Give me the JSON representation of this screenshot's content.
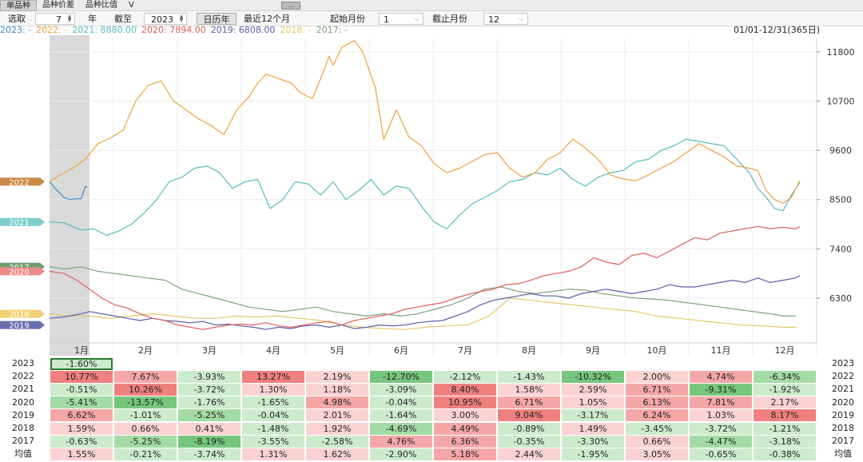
{
  "tabs": [
    {
      "label": "单品种",
      "active": true
    },
    {
      "label": "品种价差",
      "active": false
    },
    {
      "label": "品种比值",
      "active": false
    },
    {
      "label": "V",
      "active": false
    }
  ],
  "tab_button_label": "...",
  "toolbar": {
    "select_label": "选取",
    "years_value": "7",
    "years_unit": "年",
    "cutoff_label": "截至",
    "cutoff_year": "2023",
    "calendar_button": "日历年",
    "recent_button": "最近12个月",
    "start_month_label": "起始月份",
    "start_month_value": "1",
    "end_month_label": "截止月份",
    "end_month_value": "12"
  },
  "legend": [
    {
      "text": "2023: -",
      "color": "#3a8fc7"
    },
    {
      "text": "2022: -",
      "color": "#f0a03c"
    },
    {
      "text": "2021: 8880.00",
      "color": "#55bcc0"
    },
    {
      "text": "2020: 7894.00",
      "color": "#e0605a"
    },
    {
      "text": "2019: 6808.00",
      "color": "#5a5fa8"
    },
    {
      "text": "2018: -",
      "color": "#e8c66a"
    },
    {
      "text": "2017: -",
      "color": "#7aa57a"
    }
  ],
  "date_range": "01/01-12/31(365日)",
  "chart_data": {
    "type": "line",
    "months": [
      "1月",
      "2月",
      "3月",
      "4月",
      "5月",
      "6月",
      "7月",
      "8月",
      "9月",
      "10月",
      "11月",
      "12月"
    ],
    "y_ticks": [
      6300,
      7400,
      8500,
      9600,
      10700,
      11800
    ],
    "ylim": [
      5300,
      12100
    ],
    "xlim": [
      1,
      366
    ],
    "highlight_days": [
      1,
      20
    ],
    "series": [
      {
        "name": "2023",
        "color": "#3a8fc7",
        "x": [
          1,
          4,
          6,
          8,
          11,
          14,
          16,
          18,
          19
        ],
        "y": [
          8900,
          8730,
          8640,
          8540,
          8500,
          8520,
          8520,
          8790,
          8780
        ]
      },
      {
        "name": "2022",
        "color": "#f0a03c",
        "x": [
          1,
          6,
          12,
          18,
          24,
          30,
          36,
          42,
          48,
          54,
          60,
          66,
          72,
          78,
          84,
          90,
          96,
          100,
          104,
          110,
          116,
          120,
          126,
          130,
          134,
          136,
          140,
          146,
          150,
          156,
          160,
          166,
          172,
          178,
          184,
          190,
          196,
          202,
          208,
          214,
          220,
          226,
          232,
          238,
          244,
          250,
          256,
          262,
          268,
          274,
          280,
          286,
          292,
          298,
          304,
          310,
          316,
          322,
          328,
          334,
          338,
          342,
          346,
          350,
          354,
          358
        ],
        "y": [
          8900,
          9050,
          9200,
          9400,
          9750,
          9880,
          10050,
          10700,
          11050,
          11150,
          10700,
          10500,
          10300,
          10150,
          9950,
          10500,
          10800,
          11100,
          11300,
          11200,
          11100,
          10900,
          10750,
          11200,
          11700,
          11500,
          11900,
          12050,
          11800,
          11000,
          9850,
          10500,
          9900,
          9700,
          9300,
          9100,
          9200,
          9350,
          9500,
          9550,
          9200,
          9000,
          9100,
          9400,
          9550,
          9850,
          9650,
          9400,
          9050,
          8960,
          8920,
          9050,
          9200,
          9350,
          9550,
          9750,
          9600,
          9450,
          9250,
          9200,
          9150,
          8700,
          8500,
          8420,
          8550,
          8920
        ]
      },
      {
        "name": "2021",
        "color": "#55bcc0",
        "x": [
          1,
          8,
          16,
          22,
          28,
          34,
          40,
          46,
          52,
          58,
          64,
          70,
          76,
          82,
          88,
          94,
          100,
          106,
          112,
          118,
          124,
          130,
          136,
          142,
          148,
          154,
          160,
          166,
          172,
          178,
          184,
          190,
          196,
          202,
          208,
          214,
          220,
          226,
          232,
          238,
          244,
          250,
          256,
          262,
          268,
          274,
          280,
          286,
          292,
          298,
          304,
          310,
          316,
          322,
          328,
          334,
          338,
          342,
          346,
          350,
          354,
          358
        ],
        "y": [
          8000,
          7980,
          7820,
          7850,
          7700,
          7800,
          7950,
          8200,
          8500,
          8900,
          9000,
          9200,
          9250,
          9100,
          8750,
          8900,
          8950,
          8300,
          8500,
          8900,
          8850,
          8600,
          8900,
          8500,
          8700,
          8950,
          8600,
          8800,
          8750,
          8350,
          8000,
          7850,
          8150,
          8400,
          8550,
          8700,
          8900,
          8950,
          9100,
          9050,
          9200,
          8950,
          8800,
          9000,
          9100,
          9150,
          9350,
          9400,
          9600,
          9700,
          9850,
          9800,
          9750,
          9700,
          9400,
          9100,
          8750,
          8550,
          8300,
          8250,
          8600,
          8880
        ]
      },
      {
        "name": "2020",
        "color": "#e0605a",
        "x": [
          1,
          8,
          14,
          20,
          26,
          32,
          38,
          44,
          50,
          56,
          62,
          68,
          74,
          80,
          86,
          92,
          98,
          104,
          110,
          116,
          122,
          128,
          134,
          140,
          146,
          152,
          158,
          164,
          170,
          176,
          182,
          188,
          194,
          200,
          206,
          212,
          218,
          224,
          230,
          236,
          242,
          248,
          254,
          260,
          266,
          272,
          278,
          284,
          290,
          296,
          302,
          308,
          314,
          320,
          326,
          332,
          338,
          344,
          350,
          356,
          358
        ],
        "y": [
          6900,
          6850,
          6700,
          6500,
          6300,
          6150,
          6080,
          5950,
          5850,
          5800,
          5700,
          5650,
          5600,
          5650,
          5700,
          5720,
          5700,
          5750,
          5680,
          5650,
          5700,
          5750,
          5780,
          5700,
          5800,
          5850,
          5900,
          5950,
          6050,
          6100,
          6150,
          6200,
          6300,
          6380,
          6450,
          6500,
          6600,
          6620,
          6700,
          6800,
          6850,
          6900,
          7000,
          7200,
          7100,
          7050,
          7250,
          7300,
          7200,
          7350,
          7500,
          7650,
          7600,
          7750,
          7800,
          7850,
          7900,
          7850,
          7880,
          7850,
          7894
        ]
      },
      {
        "name": "2019",
        "color": "#5a5fa8",
        "x": [
          1,
          8,
          16,
          20,
          26,
          32,
          38,
          44,
          50,
          56,
          62,
          68,
          74,
          80,
          86,
          92,
          98,
          104,
          110,
          116,
          122,
          128,
          134,
          140,
          146,
          152,
          158,
          164,
          170,
          176,
          182,
          188,
          194,
          200,
          206,
          212,
          218,
          224,
          230,
          236,
          242,
          248,
          254,
          260,
          266,
          272,
          278,
          284,
          290,
          296,
          302,
          308,
          314,
          320,
          326,
          332,
          338,
          344,
          350,
          356,
          358
        ],
        "y": [
          5850,
          5880,
          5950,
          6000,
          5950,
          5900,
          5850,
          5800,
          5850,
          5800,
          5780,
          5750,
          5780,
          5700,
          5720,
          5680,
          5650,
          5600,
          5650,
          5620,
          5680,
          5700,
          5650,
          5700,
          5620,
          5650,
          5700,
          5680,
          5700,
          5750,
          5780,
          5800,
          5900,
          6000,
          6150,
          6250,
          6300,
          6350,
          6400,
          6350,
          6350,
          6300,
          6400,
          6450,
          6500,
          6450,
          6400,
          6450,
          6500,
          6600,
          6550,
          6550,
          6600,
          6650,
          6700,
          6650,
          6750,
          6650,
          6700,
          6750,
          6808
        ]
      },
      {
        "name": "2018",
        "color": "#e8c66a",
        "x": [
          1,
          10,
          20,
          30,
          40,
          50,
          60,
          70,
          80,
          90,
          100,
          110,
          120,
          130,
          140,
          150,
          160,
          170,
          180,
          190,
          200,
          210,
          220,
          230,
          240,
          250,
          260,
          270,
          280,
          290,
          300,
          310,
          320,
          330,
          340,
          350,
          356
        ],
        "y": [
          5950,
          5900,
          5900,
          5850,
          5900,
          5950,
          5900,
          5850,
          5850,
          5900,
          5880,
          5900,
          5850,
          5800,
          5700,
          5650,
          5620,
          5600,
          5650,
          5680,
          5700,
          5900,
          6300,
          6250,
          6200,
          6150,
          6100,
          6050,
          6000,
          5900,
          5850,
          5800,
          5750,
          5700,
          5680,
          5650,
          5650
        ]
      },
      {
        "name": "2017",
        "color": "#7aa57a",
        "x": [
          1,
          8,
          16,
          24,
          32,
          40,
          48,
          56,
          64,
          72,
          80,
          88,
          96,
          104,
          112,
          120,
          128,
          136,
          144,
          152,
          160,
          168,
          176,
          184,
          192,
          200,
          208,
          216,
          224,
          232,
          240,
          248,
          256,
          264,
          272,
          280,
          288,
          296,
          304,
          312,
          320,
          328,
          336,
          344,
          350,
          356
        ],
        "y": [
          7000,
          6950,
          7000,
          6900,
          6850,
          6800,
          6750,
          6700,
          6500,
          6400,
          6300,
          6200,
          6100,
          6050,
          6000,
          6050,
          6100,
          6000,
          5950,
          5900,
          5950,
          5900,
          5950,
          6050,
          6150,
          6300,
          6500,
          6550,
          6450,
          6400,
          6450,
          6500,
          6480,
          6400,
          6350,
          6300,
          6280,
          6250,
          6200,
          6150,
          6100,
          6050,
          6000,
          5950,
          5900,
          5900
        ]
      }
    ],
    "markers": [
      {
        "label": "2022",
        "value": 8900,
        "color": "#c88a46"
      },
      {
        "label": "2021",
        "value": 8000,
        "color": "#7fcccc"
      },
      {
        "label": "2017",
        "value": 7000,
        "color": "#6e9e6e"
      },
      {
        "label": "2020",
        "value": 6900,
        "color": "#ef8a86"
      },
      {
        "label": "2018",
        "value": 5950,
        "color": "#f0d070"
      },
      {
        "label": "2019",
        "value": 5700,
        "color": "#6a6fb0"
      }
    ]
  },
  "table": {
    "months": [
      "1月",
      "2月",
      "3月",
      "4月",
      "5月",
      "6月",
      "7月",
      "8月",
      "9月",
      "10月",
      "11月",
      "12月"
    ],
    "rows": [
      {
        "year": "2023",
        "values": [
          "-1.60%",
          "",
          "",
          "",
          "",
          "",
          "",
          "",
          "",
          "",
          "",
          ""
        ]
      },
      {
        "year": "2022",
        "values": [
          "10.77%",
          "7.67%",
          "-3.93%",
          "13.27%",
          "2.19%",
          "-12.70%",
          "-2.12%",
          "-1.43%",
          "-10.32%",
          "2.00%",
          "4.74%",
          "-6.34%"
        ]
      },
      {
        "year": "2021",
        "values": [
          "-0.51%",
          "10.26%",
          "-3.72%",
          "1.30%",
          "1.18%",
          "-3.09%",
          "8.40%",
          "1.58%",
          "2.59%",
          "6.71%",
          "-9.31%",
          "-1.92%"
        ]
      },
      {
        "year": "2020",
        "values": [
          "-5.41%",
          "-13.57%",
          "-1.76%",
          "-1.65%",
          "4.98%",
          "-0.04%",
          "10.95%",
          "6.71%",
          "1.05%",
          "6.13%",
          "7.81%",
          "2.17%"
        ]
      },
      {
        "year": "2019",
        "values": [
          "6.62%",
          "-1.01%",
          "-5.25%",
          "-0.04%",
          "2.01%",
          "-1.64%",
          "3.00%",
          "9.04%",
          "-3.17%",
          "6.24%",
          "1.03%",
          "8.17%"
        ]
      },
      {
        "year": "2018",
        "values": [
          "1.59%",
          "0.66%",
          "0.41%",
          "-1.48%",
          "1.92%",
          "-4.69%",
          "4.49%",
          "-0.89%",
          "1.49%",
          "-3.45%",
          "-3.72%",
          "-1.21%"
        ]
      },
      {
        "year": "2017",
        "values": [
          "-0.63%",
          "-5.25%",
          "-8.19%",
          "-3.55%",
          "-2.58%",
          "4.76%",
          "6.36%",
          "-0.35%",
          "-3.30%",
          "0.66%",
          "-4.47%",
          "-3.18%"
        ]
      },
      {
        "year": "均值",
        "values": [
          "1.55%",
          "-0.21%",
          "-3.74%",
          "1.31%",
          "1.62%",
          "-2.90%",
          "5.18%",
          "2.44%",
          "-1.95%",
          "3.05%",
          "-0.65%",
          "-0.38%"
        ]
      }
    ]
  }
}
